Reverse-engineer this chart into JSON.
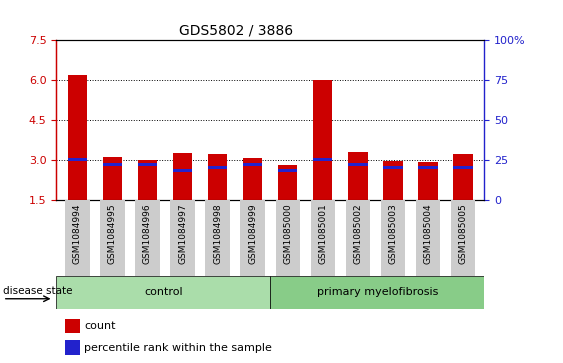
{
  "title": "GDS5802 / 3886",
  "samples": [
    "GSM1084994",
    "GSM1084995",
    "GSM1084996",
    "GSM1084997",
    "GSM1084998",
    "GSM1084999",
    "GSM1085000",
    "GSM1085001",
    "GSM1085002",
    "GSM1085003",
    "GSM1085004",
    "GSM1085005"
  ],
  "red_heights": [
    6.2,
    3.1,
    3.0,
    3.25,
    3.2,
    3.05,
    2.8,
    6.0,
    3.3,
    2.95,
    2.9,
    3.2
  ],
  "blue_bottom": [
    2.95,
    2.75,
    2.75,
    2.55,
    2.65,
    2.75,
    2.55,
    2.95,
    2.75,
    2.65,
    2.65,
    2.65
  ],
  "blue_heights": [
    0.12,
    0.12,
    0.12,
    0.12,
    0.12,
    0.12,
    0.12,
    0.12,
    0.12,
    0.12,
    0.12,
    0.12
  ],
  "ylim_left": [
    1.5,
    7.5
  ],
  "yticks_left": [
    1.5,
    3.0,
    4.5,
    6.0,
    7.5
  ],
  "yticks_right": [
    0,
    25,
    50,
    75,
    100
  ],
  "control_samples": 6,
  "disease_label_left": "control",
  "disease_label_right": "primary myelofibrosis",
  "disease_state_label": "disease state",
  "legend_count_label": "count",
  "legend_percentile_label": "percentile rank within the sample",
  "bar_color_red": "#cc0000",
  "bar_color_blue": "#2222cc",
  "bar_width": 0.55,
  "background_control": "#aaddaa",
  "background_disease": "#88cc88",
  "dotted_line_color": "#000000",
  "axis_color_left": "#cc0000",
  "axis_color_right": "#2222cc",
  "xtick_bg": "#cccccc"
}
